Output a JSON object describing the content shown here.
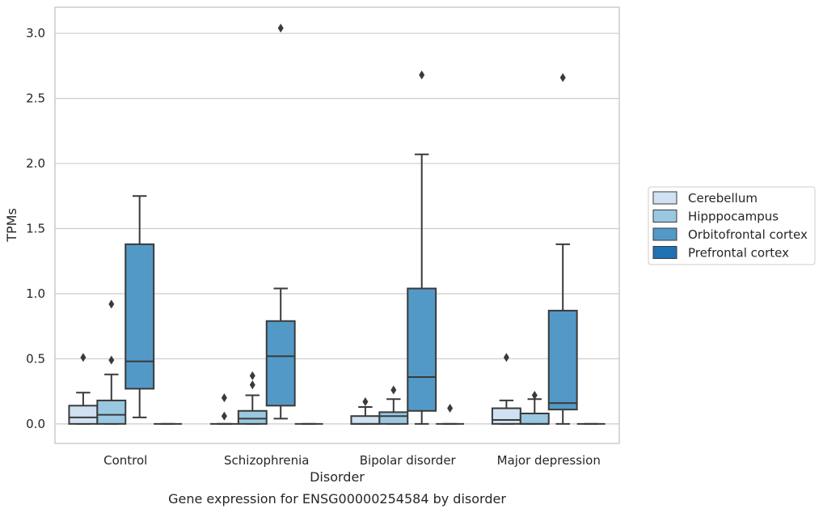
{
  "chart_data": {
    "type": "box",
    "title": "",
    "caption": "Gene expression for ENSG00000254584 by disorder",
    "xlabel": "Disorder",
    "ylabel": "TPMs",
    "ylim": [
      -0.15,
      3.2
    ],
    "yticks": [
      0.0,
      0.5,
      1.0,
      1.5,
      2.0,
      2.5,
      3.0
    ],
    "ytick_labels": [
      "0.0",
      "0.5",
      "1.0",
      "1.5",
      "2.0",
      "2.5",
      "3.0"
    ],
    "grid": "horizontal",
    "legend_position": "right",
    "categories": [
      "Control",
      "Schizophrenia",
      "Bipolar disorder",
      "Major depression"
    ],
    "series": [
      {
        "name": "Cerebellum",
        "color": "#d0e1f2",
        "boxes": [
          {
            "whislo": 0.0,
            "q1": 0.0,
            "med": 0.05,
            "q3": 0.14,
            "whishi": 0.24,
            "fliers": [
              0.51
            ]
          },
          {
            "whislo": 0.0,
            "q1": 0.0,
            "med": 0.0,
            "q3": 0.0,
            "whishi": 0.0,
            "fliers": [
              0.06,
              0.2
            ]
          },
          {
            "whislo": 0.0,
            "q1": 0.0,
            "med": 0.0,
            "q3": 0.06,
            "whishi": 0.13,
            "fliers": [
              0.17
            ]
          },
          {
            "whislo": 0.0,
            "q1": 0.0,
            "med": 0.03,
            "q3": 0.12,
            "whishi": 0.18,
            "fliers": [
              0.51
            ]
          }
        ]
      },
      {
        "name": "Hipppocampus",
        "color": "#9ac8e0",
        "boxes": [
          {
            "whislo": 0.0,
            "q1": 0.0,
            "med": 0.07,
            "q3": 0.18,
            "whishi": 0.38,
            "fliers": [
              0.49,
              0.92
            ]
          },
          {
            "whislo": 0.0,
            "q1": 0.0,
            "med": 0.04,
            "q3": 0.1,
            "whishi": 0.22,
            "fliers": [
              0.3,
              0.37
            ]
          },
          {
            "whislo": 0.0,
            "q1": 0.0,
            "med": 0.06,
            "q3": 0.09,
            "whishi": 0.19,
            "fliers": [
              0.26
            ]
          },
          {
            "whislo": 0.0,
            "q1": 0.0,
            "med": 0.0,
            "q3": 0.08,
            "whishi": 0.19,
            "fliers": [
              0.22
            ]
          }
        ]
      },
      {
        "name": "Orbitofrontal cortex",
        "color": "#5399c7",
        "boxes": [
          {
            "whislo": 0.05,
            "q1": 0.27,
            "med": 0.48,
            "q3": 1.38,
            "whishi": 1.75,
            "fliers": []
          },
          {
            "whislo": 0.04,
            "q1": 0.14,
            "med": 0.52,
            "q3": 0.79,
            "whishi": 1.04,
            "fliers": [
              3.04
            ]
          },
          {
            "whislo": 0.0,
            "q1": 0.1,
            "med": 0.36,
            "q3": 1.04,
            "whishi": 2.07,
            "fliers": [
              2.68
            ]
          },
          {
            "whislo": 0.0,
            "q1": 0.11,
            "med": 0.16,
            "q3": 0.87,
            "whishi": 1.38,
            "fliers": [
              2.66
            ]
          }
        ]
      },
      {
        "name": "Prefrontal cortex",
        "color": "#2070b4",
        "boxes": [
          {
            "whislo": 0.0,
            "q1": 0.0,
            "med": 0.0,
            "q3": 0.0,
            "whishi": 0.0,
            "fliers": []
          },
          {
            "whislo": 0.0,
            "q1": 0.0,
            "med": 0.0,
            "q3": 0.0,
            "whishi": 0.0,
            "fliers": []
          },
          {
            "whislo": 0.0,
            "q1": 0.0,
            "med": 0.0,
            "q3": 0.0,
            "whishi": 0.0,
            "fliers": [
              0.12
            ]
          },
          {
            "whislo": 0.0,
            "q1": 0.0,
            "med": 0.0,
            "q3": 0.0,
            "whishi": 0.0,
            "fliers": []
          }
        ]
      }
    ]
  }
}
